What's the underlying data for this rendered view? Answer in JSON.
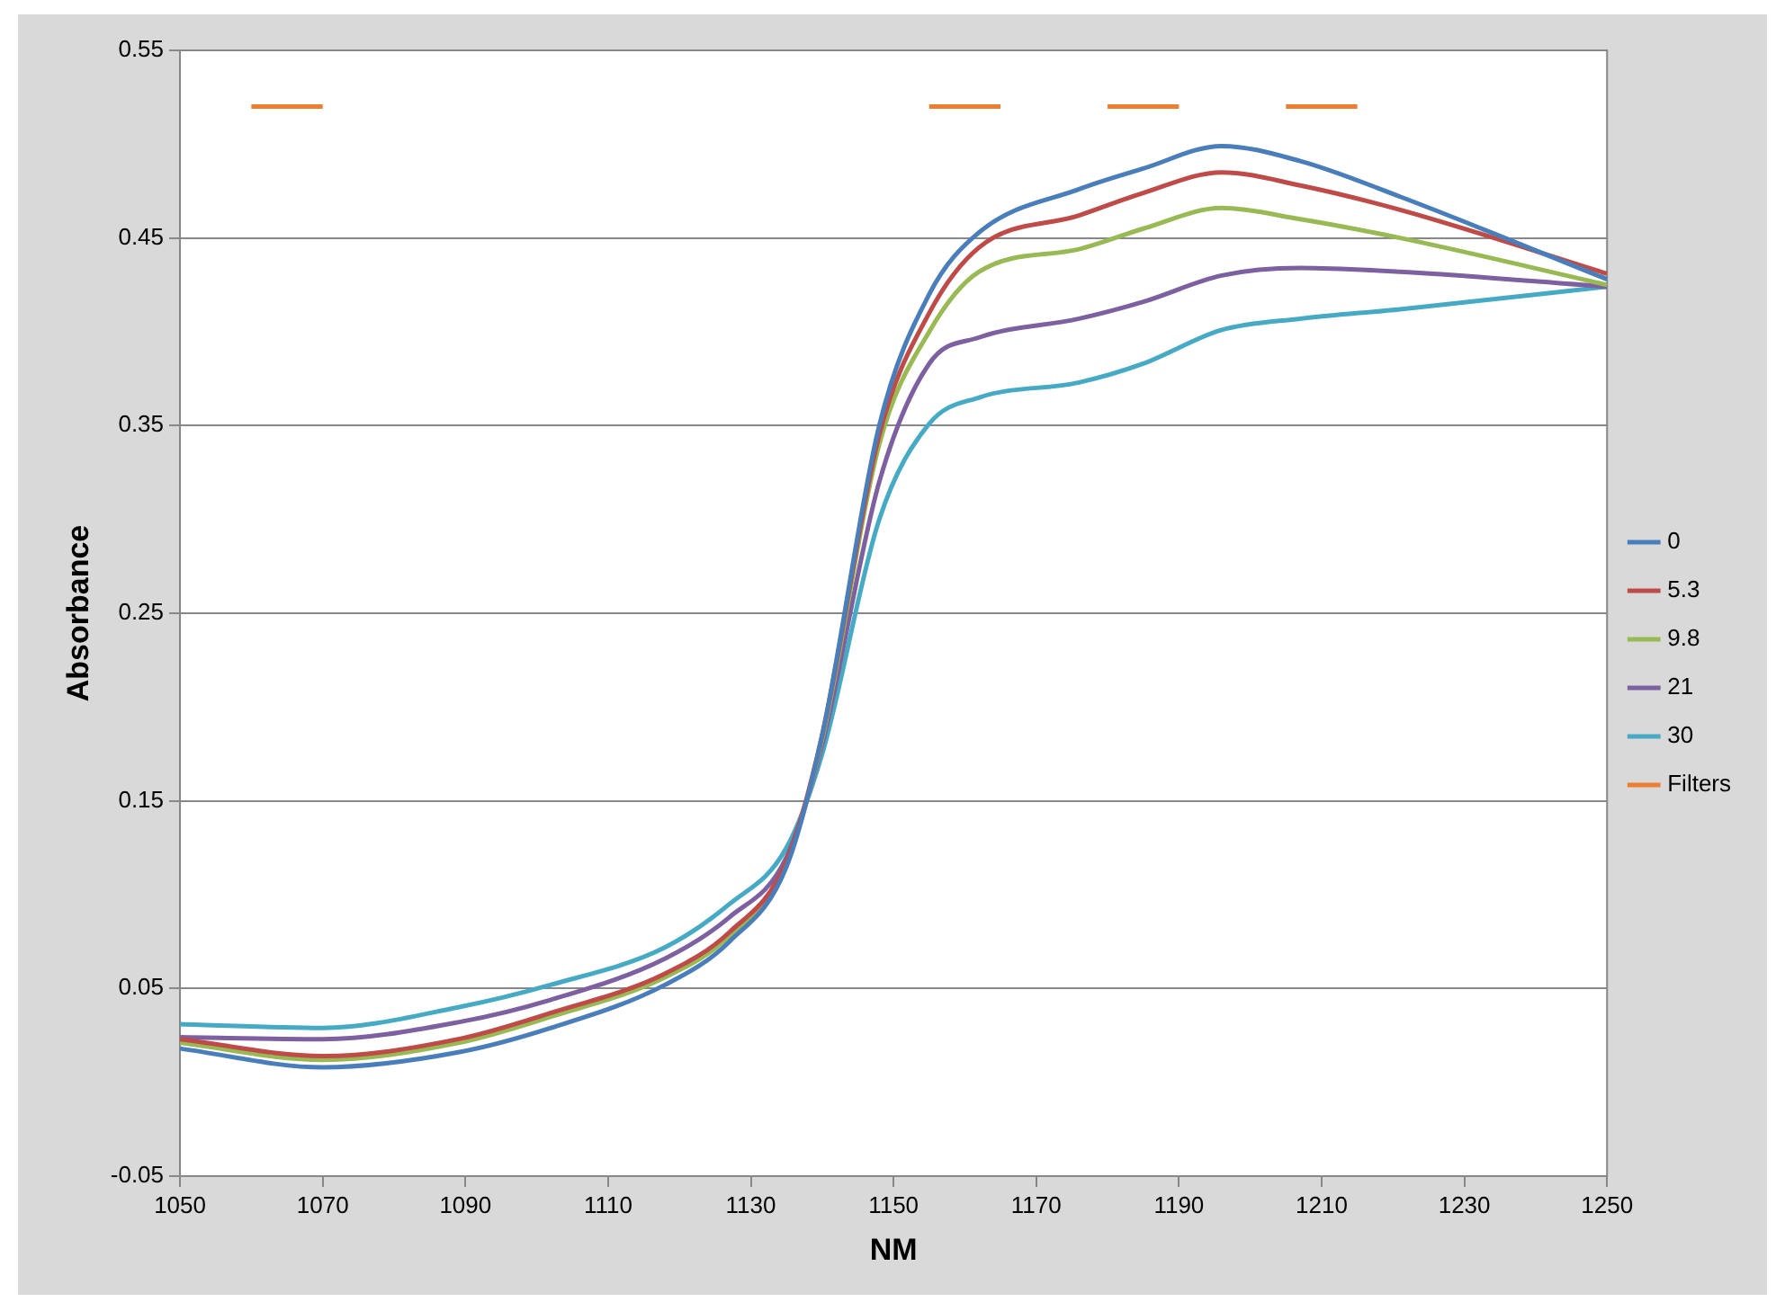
{
  "chart_data": {
    "type": "line",
    "xlabel": "NM",
    "ylabel": "Absorbance",
    "x": [
      1050,
      1070,
      1089,
      1102,
      1118,
      1127,
      1135,
      1140,
      1148,
      1155,
      1162,
      1176,
      1185,
      1196,
      1207,
      1221,
      1250
    ],
    "series": [
      {
        "name": "0",
        "color": "#4a7ebb",
        "values": [
          0.018,
          0.008,
          0.016,
          0.029,
          0.052,
          0.075,
          0.115,
          0.185,
          0.35,
          0.42,
          0.453,
          0.476,
          0.487,
          0.499,
          0.491,
          0.472,
          0.428
        ]
      },
      {
        "name": "5.3",
        "color": "#be4b48",
        "values": [
          0.023,
          0.014,
          0.023,
          0.037,
          0.058,
          0.08,
          0.118,
          0.185,
          0.345,
          0.41,
          0.445,
          0.462,
          0.474,
          0.485,
          0.478,
          0.465,
          0.431
        ]
      },
      {
        "name": "9.8",
        "color": "#98b954",
        "values": [
          0.021,
          0.012,
          0.021,
          0.035,
          0.056,
          0.078,
          0.117,
          0.183,
          0.34,
          0.4,
          0.432,
          0.444,
          0.455,
          0.466,
          0.46,
          0.45,
          0.425
        ]
      },
      {
        "name": "21",
        "color": "#7d60a0",
        "values": [
          0.024,
          0.023,
          0.032,
          0.044,
          0.066,
          0.088,
          0.12,
          0.18,
          0.32,
          0.383,
          0.397,
          0.407,
          0.416,
          0.43,
          0.434,
          0.432,
          0.424
        ]
      },
      {
        "name": "30",
        "color": "#46aac5",
        "values": [
          0.031,
          0.029,
          0.04,
          0.052,
          0.072,
          0.095,
          0.125,
          0.175,
          0.3,
          0.351,
          0.365,
          0.373,
          0.383,
          0.401,
          0.407,
          0.412,
          0.424
        ]
      },
      {
        "name": "Filters",
        "color": "#ed7d31",
        "x": [
          1060,
          1070,
          null,
          1155,
          1165,
          null,
          1180,
          1190,
          null,
          1205,
          1215
        ],
        "values": [
          0.52,
          0.52,
          null,
          0.52,
          0.52,
          null,
          0.52,
          0.52,
          null,
          0.52,
          0.52
        ]
      }
    ],
    "xlim": [
      1050,
      1250
    ],
    "xticks": [
      1050,
      1070,
      1090,
      1110,
      1130,
      1150,
      1170,
      1190,
      1210,
      1230,
      1250
    ],
    "ylim": [
      -0.05,
      0.55
    ],
    "yticks": [
      -0.05,
      0.05,
      0.15,
      0.25,
      0.35,
      0.45,
      0.55
    ],
    "grid": "y",
    "legend": "right",
    "marker": "none",
    "line_style": "solid"
  }
}
